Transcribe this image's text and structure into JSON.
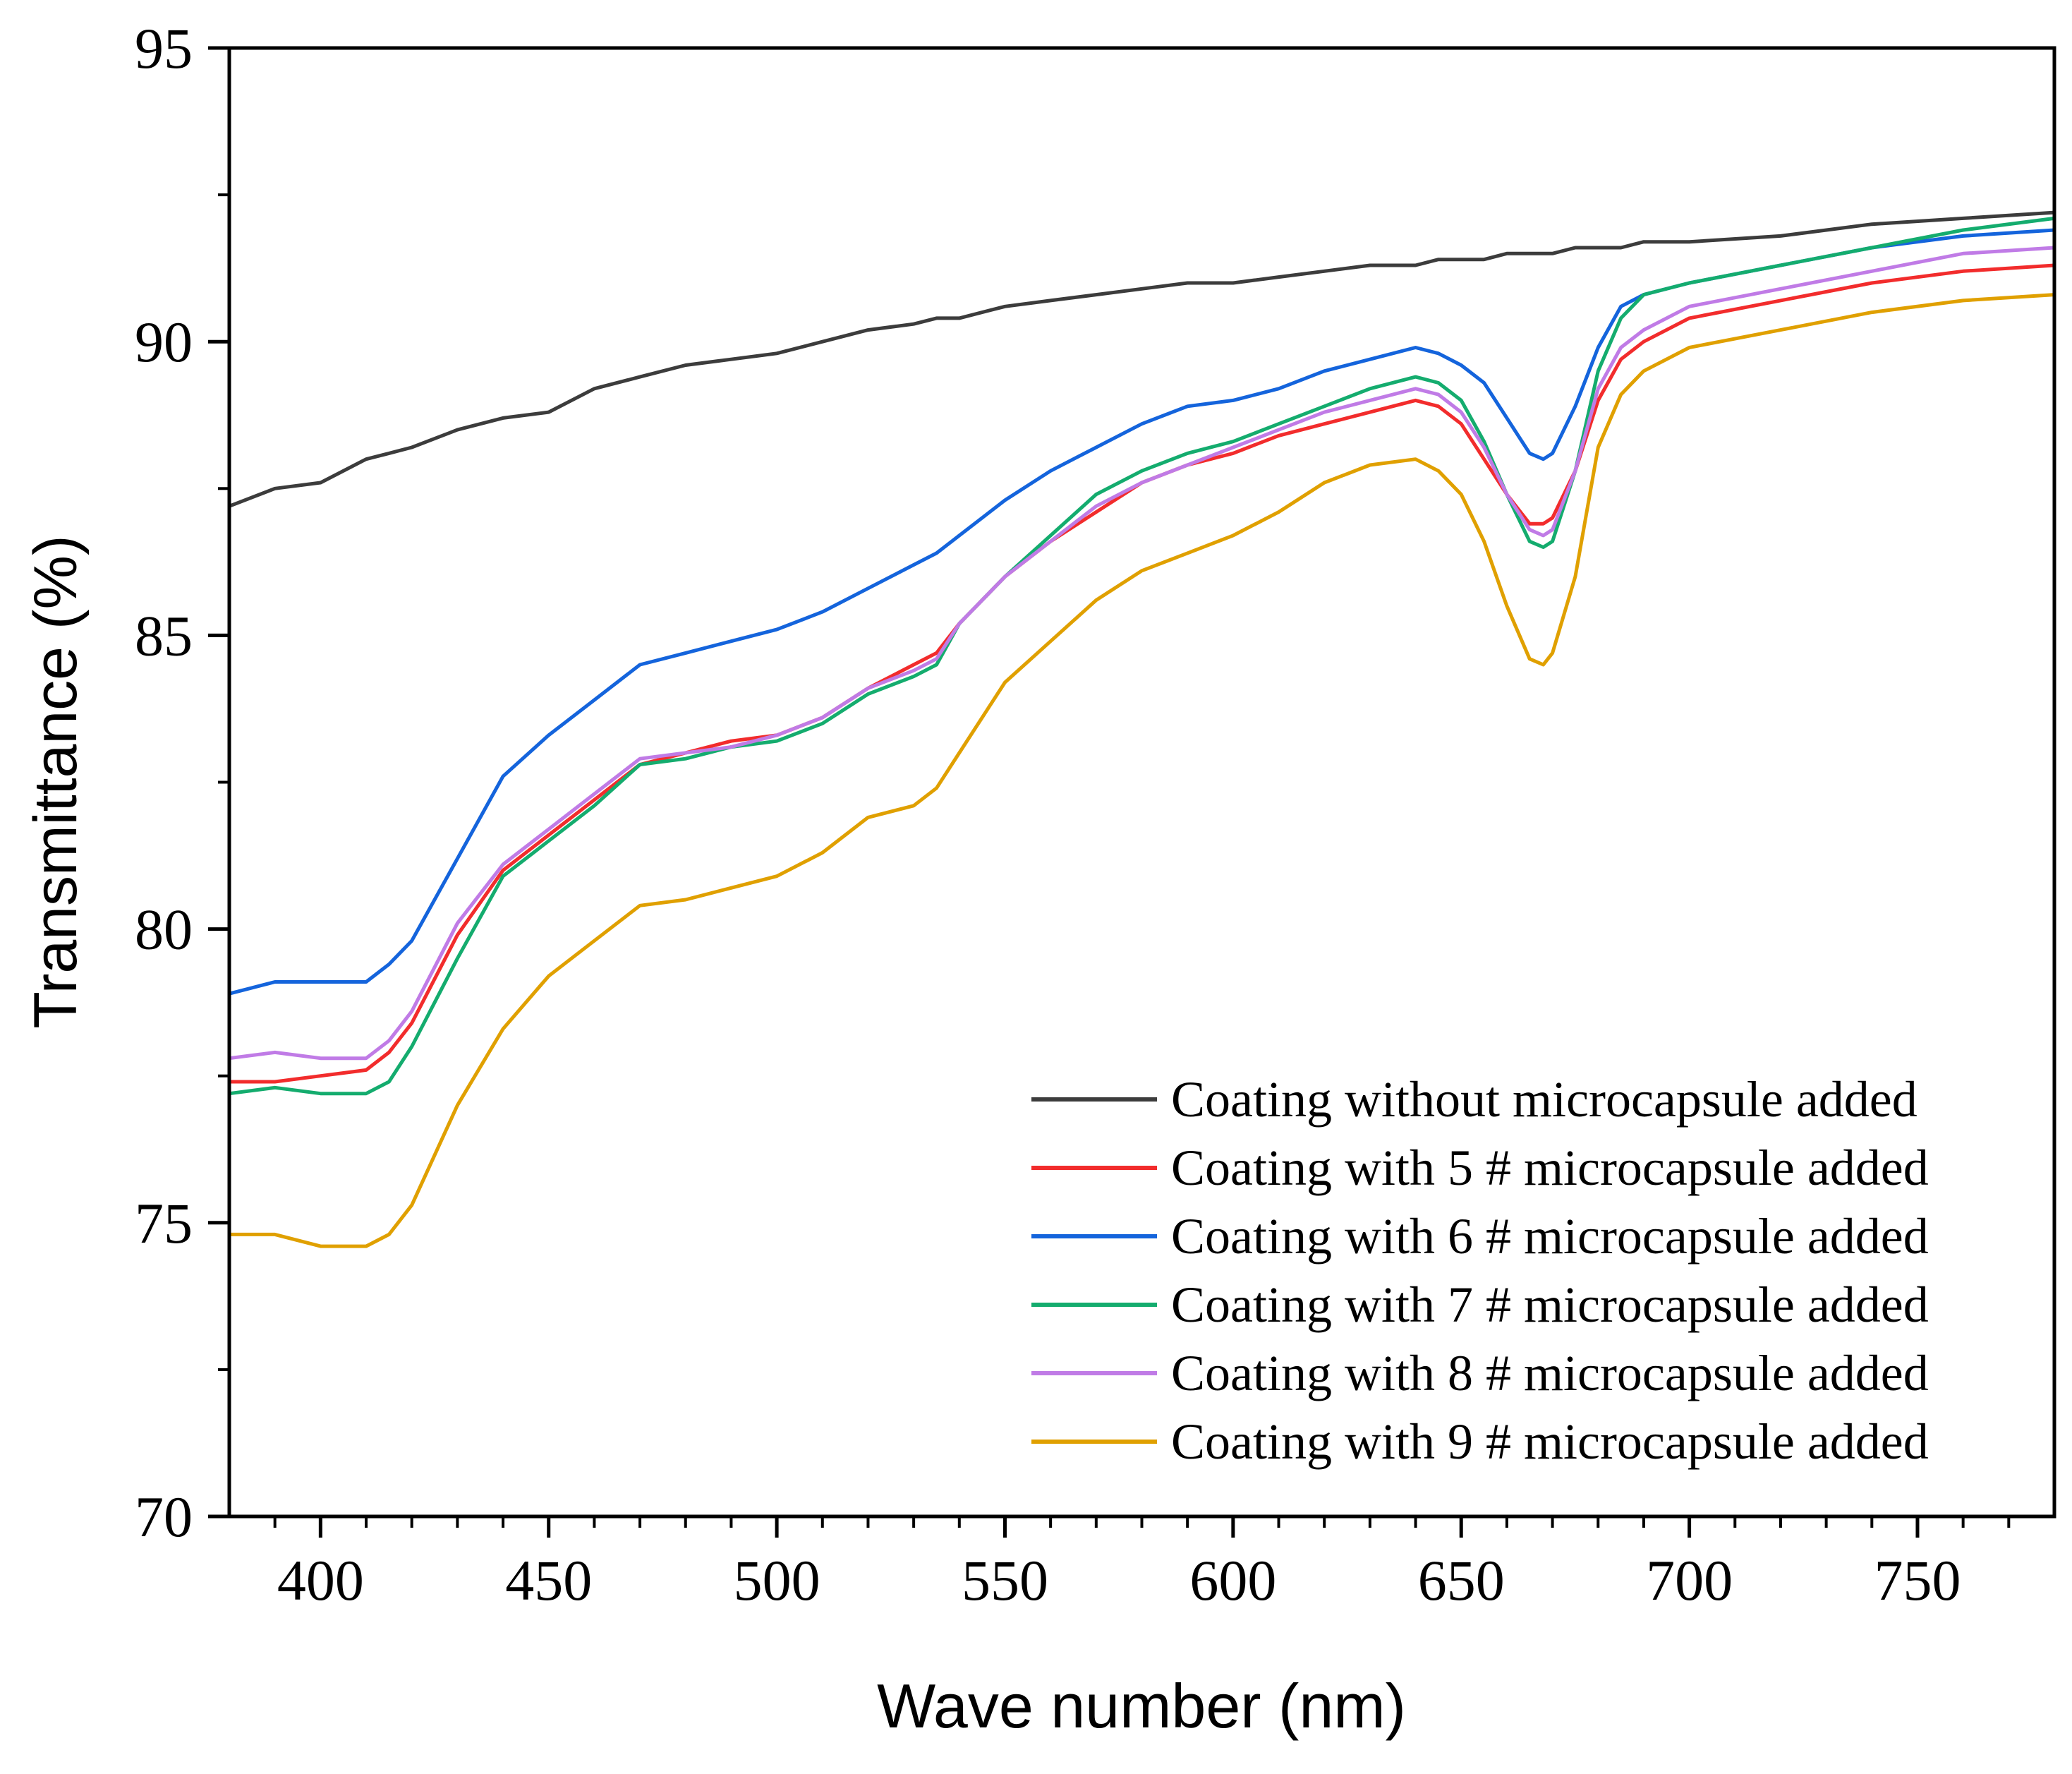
{
  "chart_data": {
    "type": "line",
    "title": "",
    "xlabel": "Wave number (nm)",
    "ylabel": "Transmittance (%)",
    "xlim": [
      380,
      780
    ],
    "ylim": [
      70,
      95
    ],
    "x_ticks": [
      400,
      450,
      500,
      550,
      600,
      650,
      700,
      750
    ],
    "y_ticks": [
      70,
      75,
      80,
      85,
      90,
      95
    ],
    "grid": false,
    "legend_position": "bottom-right",
    "x": [
      380,
      390,
      400,
      410,
      415,
      420,
      430,
      440,
      450,
      460,
      470,
      480,
      490,
      500,
      510,
      520,
      530,
      535,
      540,
      550,
      560,
      570,
      580,
      590,
      600,
      610,
      620,
      630,
      640,
      645,
      650,
      655,
      660,
      665,
      668,
      670,
      675,
      680,
      685,
      690,
      700,
      720,
      740,
      760,
      780
    ],
    "series": [
      {
        "name": "Coating without microcapsule added",
        "color": "#3c3c3c",
        "values": [
          87.2,
          87.5,
          87.6,
          88.0,
          88.1,
          88.2,
          88.5,
          88.7,
          88.8,
          89.2,
          89.4,
          89.6,
          89.7,
          89.8,
          90.0,
          90.2,
          90.3,
          90.4,
          90.4,
          90.6,
          90.7,
          90.8,
          90.9,
          91.0,
          91.0,
          91.1,
          91.2,
          91.3,
          91.3,
          91.4,
          91.4,
          91.4,
          91.5,
          91.5,
          91.5,
          91.5,
          91.6,
          91.6,
          91.6,
          91.7,
          91.7,
          91.8,
          92.0,
          92.1,
          92.2
        ]
      },
      {
        "name": "Coating with 5 # microcapsule added",
        "color": "#f22c2c",
        "values": [
          77.4,
          77.4,
          77.5,
          77.6,
          77.9,
          78.4,
          79.9,
          81.0,
          81.6,
          82.2,
          82.8,
          83.0,
          83.2,
          83.3,
          83.6,
          84.1,
          84.5,
          84.7,
          85.2,
          86.0,
          86.6,
          87.1,
          87.6,
          87.9,
          88.1,
          88.4,
          88.6,
          88.8,
          89.0,
          88.9,
          88.6,
          88.0,
          87.4,
          86.9,
          86.9,
          87.0,
          87.8,
          89.0,
          89.7,
          90.0,
          90.4,
          90.7,
          91.0,
          91.2,
          91.3
        ]
      },
      {
        "name": "Coating with 6 # microcapsule added",
        "color": "#1464dc",
        "values": [
          78.9,
          79.1,
          79.1,
          79.1,
          79.4,
          79.8,
          81.2,
          82.6,
          83.3,
          83.9,
          84.5,
          84.7,
          84.9,
          85.1,
          85.4,
          85.8,
          86.2,
          86.4,
          86.7,
          87.3,
          87.8,
          88.2,
          88.6,
          88.9,
          89.0,
          89.2,
          89.5,
          89.7,
          89.9,
          89.8,
          89.6,
          89.3,
          88.7,
          88.1,
          88.0,
          88.1,
          88.9,
          89.9,
          90.6,
          90.8,
          91.0,
          91.3,
          91.6,
          91.8,
          91.9
        ]
      },
      {
        "name": "Coating with 7 # microcapsule added",
        "color": "#14ac6e",
        "values": [
          77.2,
          77.3,
          77.2,
          77.2,
          77.4,
          78.0,
          79.5,
          80.9,
          81.5,
          82.1,
          82.8,
          82.9,
          83.1,
          83.2,
          83.5,
          84.0,
          84.3,
          84.5,
          85.2,
          86.0,
          86.7,
          87.4,
          87.8,
          88.1,
          88.3,
          88.6,
          88.9,
          89.2,
          89.4,
          89.3,
          89.0,
          88.3,
          87.4,
          86.6,
          86.5,
          86.6,
          87.8,
          89.5,
          90.4,
          90.8,
          91.0,
          91.3,
          91.6,
          91.9,
          92.1
        ]
      },
      {
        "name": "Coating with 8 # microcapsule added",
        "color": "#c07be6",
        "values": [
          77.8,
          77.9,
          77.8,
          77.8,
          78.1,
          78.6,
          80.1,
          81.1,
          81.7,
          82.3,
          82.9,
          83.0,
          83.1,
          83.3,
          83.6,
          84.1,
          84.4,
          84.6,
          85.2,
          86.0,
          86.6,
          87.2,
          87.6,
          87.9,
          88.2,
          88.5,
          88.8,
          89.0,
          89.2,
          89.1,
          88.8,
          88.2,
          87.4,
          86.8,
          86.7,
          86.8,
          87.8,
          89.2,
          89.9,
          90.2,
          90.6,
          90.9,
          91.2,
          91.5,
          91.6
        ]
      },
      {
        "name": "Coating with 9 # microcapsule added",
        "color": "#e0a000",
        "values": [
          74.8,
          74.8,
          74.6,
          74.6,
          74.8,
          75.3,
          77.0,
          78.3,
          79.2,
          79.8,
          80.4,
          80.5,
          80.7,
          80.9,
          81.3,
          81.9,
          82.1,
          82.4,
          83.0,
          84.2,
          84.9,
          85.6,
          86.1,
          86.4,
          86.7,
          87.1,
          87.6,
          87.9,
          88.0,
          87.8,
          87.4,
          86.6,
          85.5,
          84.6,
          84.5,
          84.7,
          86.0,
          88.2,
          89.1,
          89.5,
          89.9,
          90.2,
          90.5,
          90.7,
          90.8
        ]
      }
    ]
  }
}
